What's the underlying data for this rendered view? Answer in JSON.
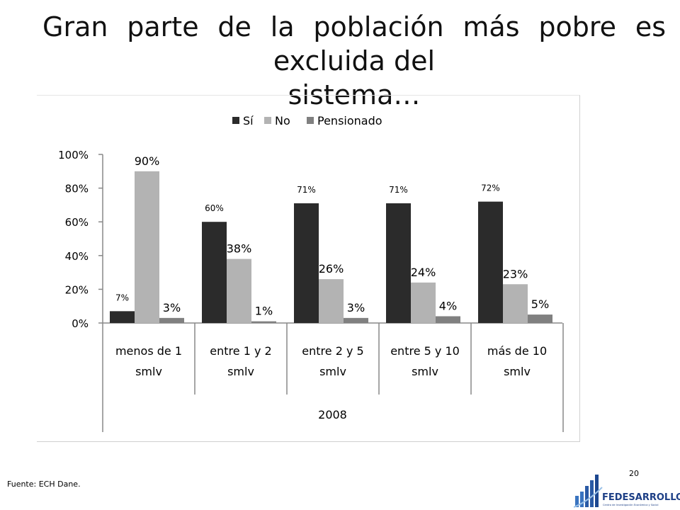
{
  "slide": {
    "title_line1": "Gran parte de la población más pobre es excluida del",
    "title_line2": "sistema…",
    "source": "Fuente: ECH Dane.",
    "page_number": "20",
    "logo_text": "FEDESARROLLO",
    "logo_subtitle": "Centro de Investigación Económica y Social"
  },
  "chart_data": {
    "type": "bar",
    "categories": [
      [
        "menos de 1",
        "smlv"
      ],
      [
        "entre 1 y 2",
        "smlv"
      ],
      [
        "entre 2 y 5",
        "smlv"
      ],
      [
        "entre 5 y 10",
        "smlv"
      ],
      [
        "más de 10",
        "smlv"
      ]
    ],
    "group_label": "2008",
    "series": [
      {
        "name": "Sí",
        "color": "#2b2b2b",
        "values": [
          7,
          60,
          71,
          71,
          72
        ],
        "labels": [
          "7%",
          "60%",
          "71%",
          "71%",
          "72%"
        ]
      },
      {
        "name": "No",
        "color": "#b3b3b3",
        "values": [
          90,
          38,
          26,
          24,
          23
        ],
        "labels": [
          "90%",
          "38%",
          "26%",
          "24%",
          "23%"
        ]
      },
      {
        "name": "Pensionado",
        "color": "#808080",
        "values": [
          3,
          1,
          3,
          4,
          5
        ],
        "labels": [
          "3%",
          "1%",
          "3%",
          "4%",
          "5%"
        ]
      }
    ],
    "y_ticks": [
      "0%",
      "20%",
      "40%",
      "60%",
      "80%",
      "100%"
    ],
    "ylim": [
      0,
      100
    ],
    "legend_position": "top",
    "grid": false
  }
}
